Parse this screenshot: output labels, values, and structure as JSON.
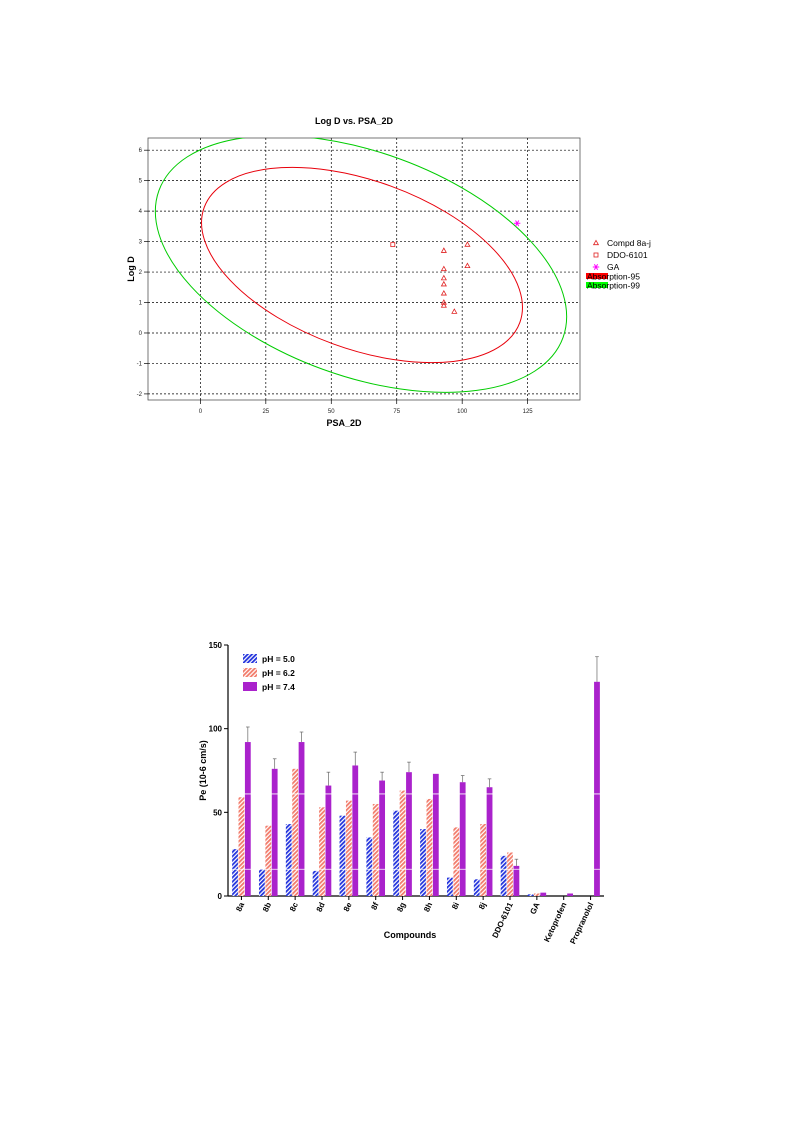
{
  "chart_data": [
    {
      "type": "scatter",
      "title": "Log D vs. PSA_2D",
      "xlabel": "PSA_2D",
      "ylabel": "Log D",
      "xlim": [
        -20,
        145
      ],
      "ylim": [
        -2.2,
        6.4
      ],
      "xticks": [
        "0",
        "25",
        "50",
        "75",
        "100",
        "125"
      ],
      "yticks": [
        "-2",
        "-1",
        "0",
        "1",
        "2",
        "3",
        "4",
        "5",
        "6"
      ],
      "grid": true,
      "legend_position": "right",
      "series": [
        {
          "name": "Compd 8a-j",
          "marker": "triangle",
          "color": "#e02020",
          "x": [
            93,
            93,
            93,
            93,
            93,
            93,
            93,
            97,
            102,
            102
          ],
          "y": [
            2.7,
            2.1,
            1.8,
            1.6,
            1.3,
            0.9,
            1.0,
            0.7,
            2.9,
            2.2
          ]
        },
        {
          "name": "DDO-6101",
          "marker": "square",
          "color": "#e02020",
          "x": [
            73.5
          ],
          "y": [
            2.9
          ]
        },
        {
          "name": "GA",
          "marker": "asterisk",
          "color": "#ff00ff",
          "x": [
            121
          ],
          "y": [
            3.6
          ]
        }
      ],
      "regions": [
        {
          "name": "Absorption-95",
          "color": "#e8000b",
          "legend_swatch": "#ff0000"
        },
        {
          "name": "Absorption-99",
          "color": "#00cc00",
          "legend_swatch": "#00ff00"
        }
      ]
    },
    {
      "type": "bar",
      "title": "",
      "xlabel": "Compounds",
      "ylabel": "Pe (10-6 cm/s)",
      "ylim": [
        0,
        150
      ],
      "yticks": [
        "0",
        "50",
        "100",
        "150"
      ],
      "grid": false,
      "legend_position": "top-left",
      "categories": [
        "8a",
        "8b",
        "8c",
        "8d",
        "8e",
        "8f",
        "8g",
        "8h",
        "8i",
        "8j",
        "DDO-6101",
        "GA",
        "Ketoprofen",
        "Propranolol"
      ],
      "series": [
        {
          "name": "pH = 5.0",
          "color": "#2233dd",
          "values": [
            28,
            16,
            43,
            15,
            48,
            35,
            51,
            40,
            11,
            10,
            24,
            1,
            0,
            0
          ],
          "errors": [
            0,
            0,
            0,
            0,
            0,
            0,
            0,
            0,
            0,
            0,
            0,
            0,
            0,
            0
          ]
        },
        {
          "name": "pH = 6.2",
          "color": "#f27b6a",
          "values": [
            59,
            42,
            76,
            53,
            57,
            55,
            63,
            58,
            41,
            43,
            26,
            1.5,
            0,
            0
          ],
          "errors": [
            0,
            0,
            0,
            0,
            0,
            0,
            0,
            0,
            0,
            0,
            0,
            0,
            0,
            0
          ]
        },
        {
          "name": "pH = 7.4",
          "color": "#aa22cc",
          "values": [
            92,
            76,
            92,
            66,
            78,
            69,
            74,
            73,
            68,
            65,
            18,
            2,
            1.5,
            128
          ],
          "errors": [
            9,
            6,
            6,
            8,
            8,
            5,
            6,
            0,
            4,
            5,
            4,
            0,
            0,
            15
          ]
        }
      ]
    }
  ]
}
